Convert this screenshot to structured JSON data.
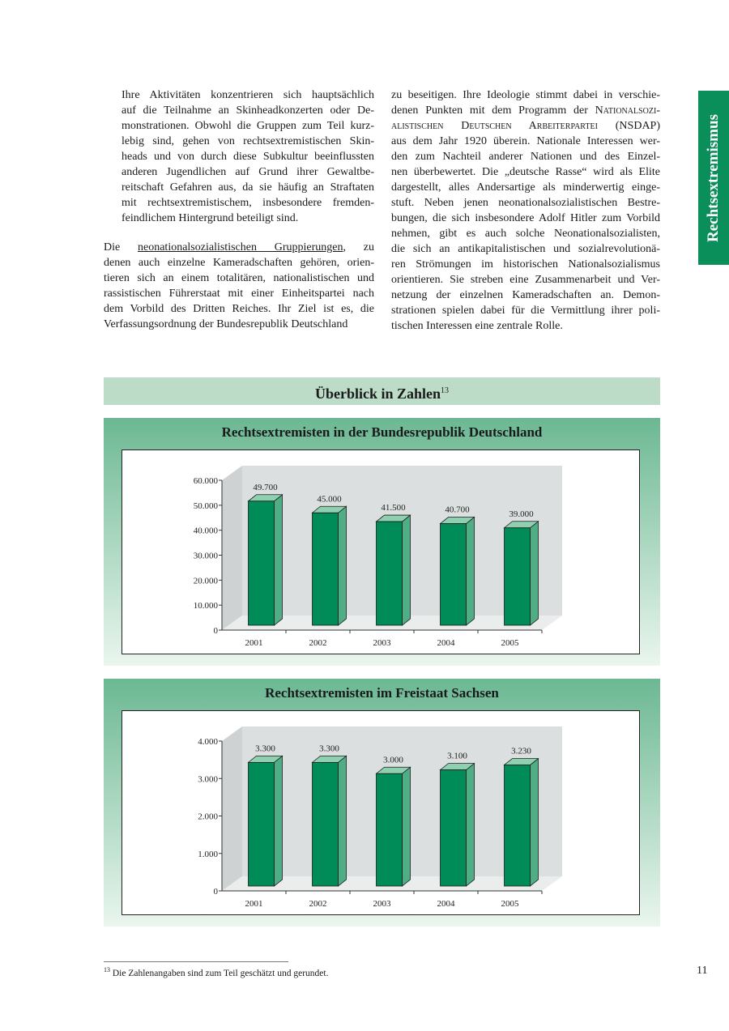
{
  "side_tab": "Rechtsextremismus",
  "left_column": [
    {
      "indent": true,
      "lines": [
        [
          {
            "t": "Ihre Aktivitäten konzentrieren sich hauptsächlich"
          }
        ],
        [
          {
            "t": "auf die Teilnahme an Skinheadkonzerten oder De-"
          }
        ],
        [
          {
            "t": "monstrationen. Obwohl die Gruppen zum Teil kurz-"
          }
        ],
        [
          {
            "t": "lebig sind, gehen von rechtsextremistischen Skin-"
          }
        ],
        [
          {
            "t": "heads und von durch diese Subkultur beeinflussten"
          }
        ],
        [
          {
            "t": "anderen Jugendlichen auf Grund ihrer Gewaltbe-"
          }
        ],
        [
          {
            "t": "reitschaft Gefahren aus, da sie häufig an Straftaten"
          }
        ],
        [
          {
            "t": "mit rechtsextremistischem, insbesondere fremden-"
          }
        ],
        [
          {
            "t": "feindlichem Hintergrund beteiligt sind."
          }
        ]
      ]
    },
    {
      "indent": false,
      "lines": [
        [
          {
            "t": "Die "
          },
          {
            "t": "neonationalsozialistischen Gruppierungen",
            "s": "ul"
          },
          {
            "t": ", zu"
          }
        ],
        [
          {
            "t": "denen auch einzelne Kameradschaften gehören, orien-"
          }
        ],
        [
          {
            "t": "tieren sich an einem totalitären, nationalistischen und"
          }
        ],
        [
          {
            "t": "rassistischen Führerstaat mit einer Einheitspartei nach"
          }
        ],
        [
          {
            "t": "dem Vorbild des Dritten Reiches. Ihr Ziel ist es, die"
          }
        ],
        [
          {
            "t": "Verfassungsordnung der Bundesrepublik Deutschland"
          }
        ]
      ]
    }
  ],
  "right_column": [
    {
      "lines": [
        [
          {
            "t": "zu beseitigen. Ihre Ideologie stimmt dabei in verschie-"
          }
        ],
        [
          {
            "t": "denen Punkten mit dem Programm der "
          },
          {
            "t": "Nationalsozi-",
            "s": "sc"
          }
        ],
        [
          {
            "t": "alistischen Deutschen Arbeiterpartei",
            "s": "sc"
          },
          {
            "t": " (NSDAP)"
          }
        ],
        [
          {
            "t": "aus dem Jahr 1920 überein. Nationale Interessen wer-"
          }
        ],
        [
          {
            "t": "den zum Nachteil anderer Nationen und des Einzel-"
          }
        ],
        [
          {
            "t": "nen überbewertet. Die „deutsche Rasse“ wird als Elite"
          }
        ],
        [
          {
            "t": "dargestellt, alles Andersartige als minderwertig einge-"
          }
        ],
        [
          {
            "t": "stuft. Neben jenen neonationalsozialistischen Bestre-"
          }
        ],
        [
          {
            "t": "bungen, die sich insbesondere Adolf Hitler zum Vorbild"
          }
        ],
        [
          {
            "t": "nehmen, gibt es auch solche Neonationalsozialisten,"
          }
        ],
        [
          {
            "t": "die sich an antikapitalistischen und sozialrevolutionä-"
          }
        ],
        [
          {
            "t": "ren Strömungen im historischen Nationalsozialismus"
          }
        ],
        [
          {
            "t": "orientieren. Sie streben eine Zusammenarbeit und Ver-"
          }
        ],
        [
          {
            "t": "netzung der einzelnen Kameradschaften an. Demon-"
          }
        ],
        [
          {
            "t": "strationen spielen dabei für die Vermittlung ihrer poli-"
          }
        ],
        [
          {
            "t": "tischen Interessen eine zentrale Rolle."
          }
        ]
      ]
    }
  ],
  "overview": {
    "title": "Überblick in Zahlen",
    "footnote_ref": "13"
  },
  "chart_data": [
    {
      "type": "bar",
      "title": "Rechtsextremisten in der Bundesrepublik Deutschland",
      "categories": [
        "2001",
        "2002",
        "2003",
        "2004",
        "2005"
      ],
      "values": [
        49700,
        45000,
        41500,
        40700,
        39000
      ],
      "value_labels": [
        "49.700",
        "45.000",
        "41.500",
        "40.700",
        "39.000"
      ],
      "yticks": [
        "0",
        "10.000",
        "20.000",
        "30.000",
        "40.000",
        "50.000",
        "60.000"
      ],
      "ylim": [
        0,
        60000
      ],
      "style": "3d",
      "grid": false,
      "colors": {
        "bar_front": "#008c58",
        "bar_side": "#4fae85",
        "bar_top": "#8fd0b0",
        "wall": "#dcdfdf",
        "floor": "#ebecec"
      }
    },
    {
      "type": "bar",
      "title": "Rechtsextremisten im Freistaat Sachsen",
      "categories": [
        "2001",
        "2002",
        "2003",
        "2004",
        "2005"
      ],
      "values": [
        3300,
        3300,
        3000,
        3100,
        3230
      ],
      "value_labels": [
        "3.300",
        "3.300",
        "3.000",
        "3.100",
        "3.230"
      ],
      "yticks": [
        "0",
        "1.000",
        "2.000",
        "3.000",
        "4.000"
      ],
      "ylim": [
        0,
        4000
      ],
      "style": "3d",
      "grid": false,
      "colors": {
        "bar_front": "#008c58",
        "bar_side": "#4fae85",
        "bar_top": "#8fd0b0",
        "wall": "#dcdfdf",
        "floor": "#ebecec"
      }
    }
  ],
  "footnote": {
    "ref": "13",
    "text": "Die Zahlenangaben sind zum Teil geschätzt und gerundet."
  },
  "page_number": "11"
}
